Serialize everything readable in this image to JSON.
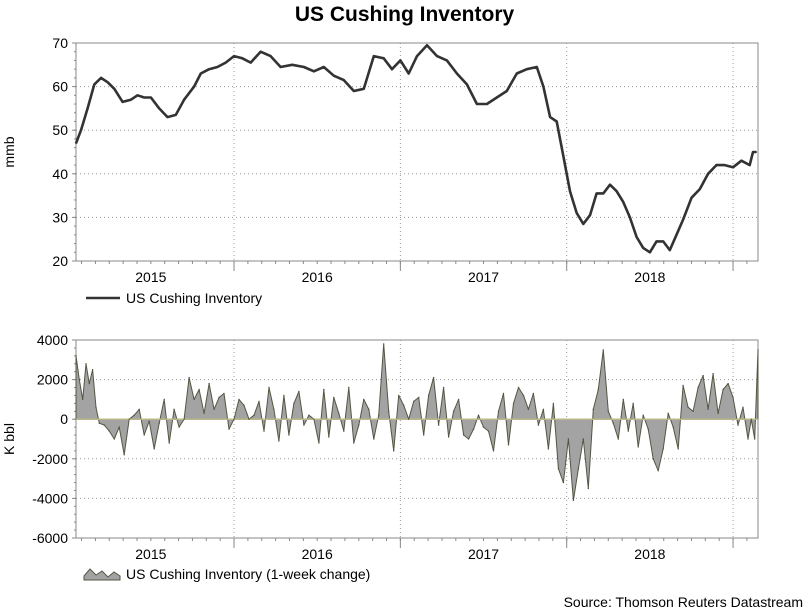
{
  "title": "US Cushing Inventory",
  "source": "Source: Thomson Reuters Datastream",
  "colors": {
    "line": "#333333",
    "area_fill": "#a3a3a3",
    "area_stroke": "#555544",
    "grid": "#999999",
    "zero_line": "#b8b888"
  },
  "chart_data": [
    {
      "type": "line",
      "title": "US Cushing Inventory",
      "ylabel": "mmb",
      "xlabel": "",
      "ylim": [
        20,
        70
      ],
      "yticks": [
        20,
        30,
        40,
        50,
        60,
        70
      ],
      "xlim": [
        2014.55,
        2018.65
      ],
      "xtick_labels": [
        "2015",
        "2016",
        "2017",
        "2018"
      ],
      "xtick_positions": [
        2015.0,
        2016.0,
        2017.0,
        2018.0
      ],
      "year_dividers": [
        2015.5,
        2016.5,
        2017.5,
        2018.5
      ],
      "legend": "US Cushing Inventory",
      "series": [
        {
          "name": "US Cushing Inventory",
          "x": [
            2014.55,
            2014.58,
            2014.62,
            2014.66,
            2014.7,
            2014.74,
            2014.78,
            2014.83,
            2014.88,
            2014.92,
            2014.96,
            2015.0,
            2015.05,
            2015.1,
            2015.15,
            2015.2,
            2015.26,
            2015.3,
            2015.35,
            2015.4,
            2015.45,
            2015.5,
            2015.55,
            2015.6,
            2015.66,
            2015.72,
            2015.78,
            2015.85,
            2015.92,
            2015.98,
            2016.04,
            2016.1,
            2016.16,
            2016.22,
            2016.28,
            2016.34,
            2016.4,
            2016.45,
            2016.5,
            2016.55,
            2016.6,
            2016.66,
            2016.72,
            2016.78,
            2016.84,
            2016.9,
            2016.96,
            2017.02,
            2017.08,
            2017.14,
            2017.2,
            2017.26,
            2017.32,
            2017.36,
            2017.4,
            2017.44,
            2017.48,
            2017.52,
            2017.56,
            2017.6,
            2017.64,
            2017.68,
            2017.72,
            2017.76,
            2017.8,
            2017.84,
            2017.88,
            2017.92,
            2017.96,
            2018.0,
            2018.04,
            2018.08,
            2018.12,
            2018.16,
            2018.2,
            2018.25,
            2018.3,
            2018.35,
            2018.4,
            2018.45,
            2018.5,
            2018.55,
            2018.6,
            2018.62,
            2018.64
          ],
          "values": [
            47.0,
            50.0,
            55.0,
            60.5,
            62.0,
            61.0,
            59.5,
            56.5,
            57.0,
            58.0,
            57.5,
            57.5,
            55.0,
            53.0,
            53.5,
            57.0,
            60.0,
            63.0,
            64.0,
            64.5,
            65.5,
            67.0,
            66.5,
            65.5,
            68.0,
            67.0,
            64.5,
            65.0,
            64.5,
            63.5,
            64.5,
            62.5,
            61.5,
            59.0,
            59.5,
            67.0,
            66.5,
            64.0,
            66.0,
            63.0,
            67.0,
            69.5,
            67.0,
            66.0,
            63.0,
            60.5,
            56.0,
            56.0,
            57.5,
            59.0,
            63.0,
            64.0,
            64.5,
            60.0,
            53.0,
            52.0,
            44.0,
            36.0,
            31.0,
            28.5,
            30.5,
            35.5,
            35.5,
            37.5,
            36.0,
            33.5,
            30.0,
            25.5,
            23.0,
            22.0,
            24.5,
            24.5,
            22.5,
            26.0,
            29.5,
            34.5,
            36.5,
            40.0,
            42.0,
            42.0,
            41.5,
            43.0,
            42.0,
            45.0,
            45.0
          ]
        }
      ]
    },
    {
      "type": "area",
      "title": "",
      "ylabel": "K bbl",
      "xlabel": "",
      "ylim": [
        -6000,
        4000
      ],
      "yticks": [
        -6000,
        -4000,
        -2000,
        0,
        2000,
        4000
      ],
      "xlim": [
        2014.55,
        2018.65
      ],
      "xtick_labels": [
        "2015",
        "2016",
        "2017",
        "2018"
      ],
      "xtick_positions": [
        2015.0,
        2016.0,
        2017.0,
        2018.0
      ],
      "year_dividers": [
        2015.5,
        2016.5,
        2017.5,
        2018.5
      ],
      "legend": "US Cushing Inventory (1-week change)",
      "series": [
        {
          "name": "US Cushing Inventory (1-week change)",
          "x": [
            2014.55,
            2014.57,
            2014.59,
            2014.61,
            2014.63,
            2014.65,
            2014.67,
            2014.69,
            2014.72,
            2014.75,
            2014.78,
            2014.81,
            2014.84,
            2014.87,
            2014.9,
            2014.93,
            2014.96,
            2014.99,
            2015.02,
            2015.05,
            2015.08,
            2015.11,
            2015.14,
            2015.17,
            2015.2,
            2015.23,
            2015.26,
            2015.29,
            2015.32,
            2015.35,
            2015.38,
            2015.41,
            2015.44,
            2015.47,
            2015.5,
            2015.53,
            2015.56,
            2015.59,
            2015.62,
            2015.65,
            2015.68,
            2015.71,
            2015.74,
            2015.77,
            2015.8,
            2015.83,
            2015.86,
            2015.89,
            2015.92,
            2015.95,
            2015.98,
            2016.01,
            2016.04,
            2016.07,
            2016.1,
            2016.13,
            2016.16,
            2016.19,
            2016.22,
            2016.25,
            2016.28,
            2016.31,
            2016.34,
            2016.37,
            2016.4,
            2016.43,
            2016.46,
            2016.49,
            2016.52,
            2016.55,
            2016.58,
            2016.61,
            2016.64,
            2016.67,
            2016.7,
            2016.73,
            2016.76,
            2016.79,
            2016.82,
            2016.85,
            2016.88,
            2016.91,
            2016.94,
            2016.97,
            2017.0,
            2017.03,
            2017.06,
            2017.09,
            2017.12,
            2017.15,
            2017.18,
            2017.21,
            2017.24,
            2017.27,
            2017.3,
            2017.33,
            2017.36,
            2017.39,
            2017.42,
            2017.45,
            2017.48,
            2017.51,
            2017.54,
            2017.57,
            2017.6,
            2017.63,
            2017.66,
            2017.69,
            2017.72,
            2017.75,
            2017.78,
            2017.81,
            2017.84,
            2017.87,
            2017.9,
            2017.93,
            2017.96,
            2017.99,
            2018.02,
            2018.05,
            2018.08,
            2018.11,
            2018.14,
            2018.17,
            2018.2,
            2018.23,
            2018.26,
            2018.29,
            2018.32,
            2018.35,
            2018.38,
            2018.41,
            2018.44,
            2018.47,
            2018.5,
            2018.53,
            2018.56,
            2018.59,
            2018.61,
            2018.63,
            2018.65
          ],
          "values": [
            3200,
            2000,
            1000,
            2800,
            1800,
            2500,
            600,
            -200,
            -300,
            -600,
            -1000,
            -400,
            -1800,
            0,
            200,
            500,
            -800,
            -100,
            -1500,
            -200,
            1000,
            -1200,
            500,
            -400,
            0,
            2100,
            1000,
            1500,
            300,
            1800,
            500,
            1100,
            1300,
            -500,
            0,
            1000,
            700,
            0,
            200,
            900,
            -600,
            1600,
            500,
            -1100,
            1200,
            -800,
            800,
            1400,
            -300,
            200,
            0,
            -1200,
            1500,
            -900,
            1100,
            300,
            -600,
            1600,
            -1200,
            -300,
            1000,
            500,
            -1000,
            200,
            3800,
            400,
            -1600,
            1200,
            700,
            0,
            900,
            1100,
            -800,
            1200,
            2100,
            -300,
            1600,
            -900,
            400,
            1000,
            -800,
            -1000,
            -500,
            200,
            -400,
            -600,
            -1600,
            400,
            1300,
            -1300,
            800,
            1600,
            1200,
            500,
            1300,
            -300,
            500,
            -1500,
            800,
            -2500,
            -3200,
            -1000,
            -4100,
            -2500,
            -1000,
            -3500,
            500,
            1500,
            3500,
            400,
            -200,
            -1000,
            1000,
            -600,
            800,
            -1400,
            200,
            -500,
            -2000,
            -2600,
            -1500,
            300,
            -400,
            -1500,
            1700,
            600,
            400,
            1600,
            2200,
            500,
            2300,
            300,
            1500,
            1800,
            1100,
            -300,
            600,
            -1000,
            0,
            -1000,
            3500
          ]
        }
      ]
    }
  ]
}
